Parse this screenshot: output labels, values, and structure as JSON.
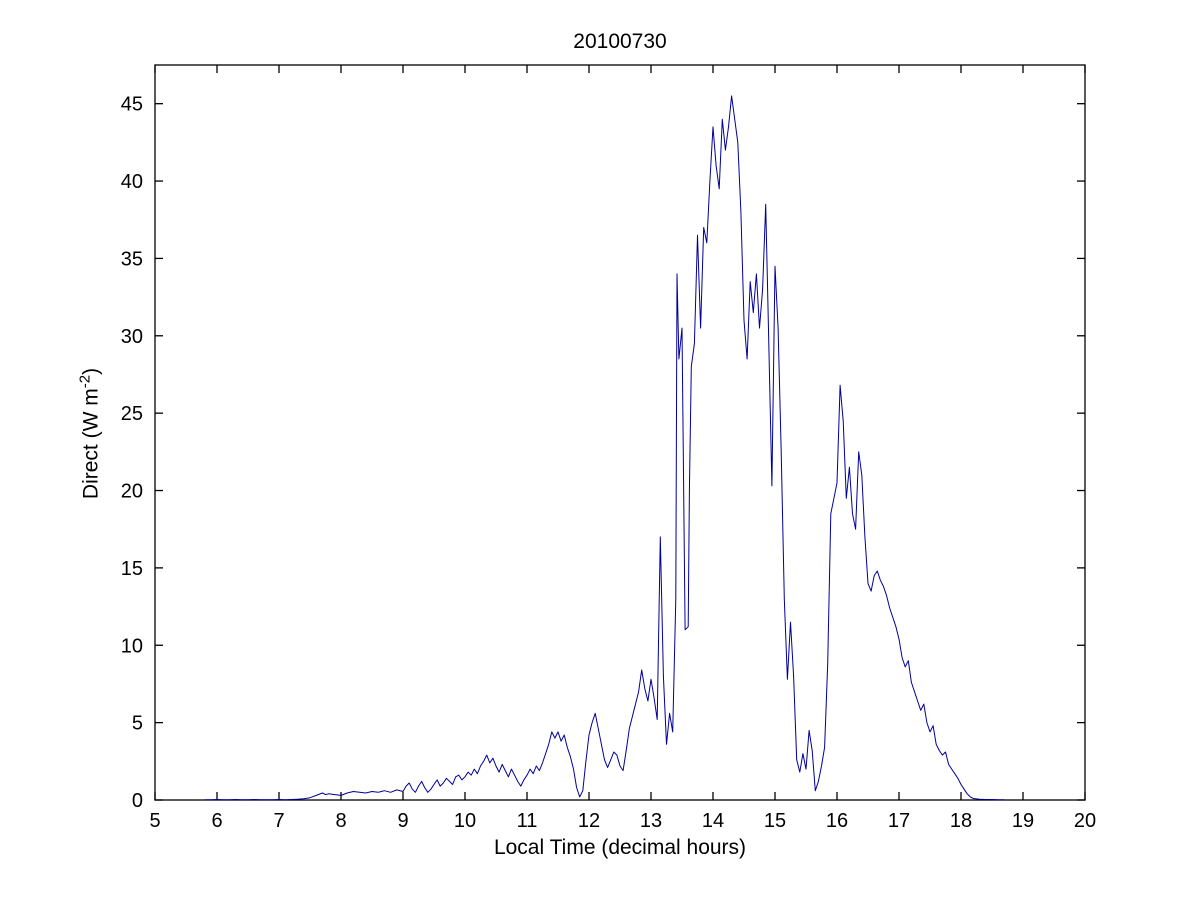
{
  "page": {
    "background": "#ffffff"
  },
  "chart_data": {
    "type": "line",
    "title": "20100730",
    "xlabel": "Local Time (decimal hours)",
    "ylabel_prefix": "Direct (W m",
    "ylabel_sup": "-2",
    "ylabel_suffix": ")",
    "xlim": [
      5,
      20
    ],
    "ylim": [
      0,
      47.5
    ],
    "xticks": [
      5,
      6,
      7,
      8,
      9,
      10,
      11,
      12,
      13,
      14,
      15,
      16,
      17,
      18,
      19,
      20
    ],
    "yticks": [
      0,
      5,
      10,
      15,
      20,
      25,
      30,
      35,
      40,
      45
    ],
    "grid": false,
    "legend_position": "none",
    "line_color": "#000099",
    "frame_color": "#000000",
    "points": [
      [
        5.8,
        0.02
      ],
      [
        5.9,
        0.02
      ],
      [
        6.0,
        0.03
      ],
      [
        6.1,
        0.02
      ],
      [
        6.2,
        0.02
      ],
      [
        6.3,
        0.03
      ],
      [
        6.4,
        0.02
      ],
      [
        6.5,
        0.02
      ],
      [
        6.6,
        0.03
      ],
      [
        6.7,
        0.02
      ],
      [
        6.8,
        0.02
      ],
      [
        6.9,
        0.02
      ],
      [
        7.0,
        0.03
      ],
      [
        7.1,
        0.02
      ],
      [
        7.2,
        0.03
      ],
      [
        7.3,
        0.05
      ],
      [
        7.4,
        0.08
      ],
      [
        7.5,
        0.15
      ],
      [
        7.6,
        0.3
      ],
      [
        7.7,
        0.45
      ],
      [
        7.75,
        0.35
      ],
      [
        7.8,
        0.4
      ],
      [
        7.9,
        0.35
      ],
      [
        8.0,
        0.3
      ],
      [
        8.1,
        0.45
      ],
      [
        8.2,
        0.55
      ],
      [
        8.3,
        0.5
      ],
      [
        8.4,
        0.45
      ],
      [
        8.5,
        0.55
      ],
      [
        8.6,
        0.5
      ],
      [
        8.7,
        0.6
      ],
      [
        8.8,
        0.5
      ],
      [
        8.9,
        0.65
      ],
      [
        9.0,
        0.55
      ],
      [
        9.05,
        0.9
      ],
      [
        9.1,
        1.1
      ],
      [
        9.15,
        0.7
      ],
      [
        9.2,
        0.5
      ],
      [
        9.25,
        0.9
      ],
      [
        9.3,
        1.2
      ],
      [
        9.35,
        0.8
      ],
      [
        9.4,
        0.5
      ],
      [
        9.45,
        0.7
      ],
      [
        9.5,
        1.0
      ],
      [
        9.55,
        1.3
      ],
      [
        9.6,
        0.9
      ],
      [
        9.65,
        1.1
      ],
      [
        9.7,
        1.4
      ],
      [
        9.75,
        1.2
      ],
      [
        9.8,
        1.0
      ],
      [
        9.85,
        1.5
      ],
      [
        9.9,
        1.6
      ],
      [
        9.95,
        1.3
      ],
      [
        10.0,
        1.5
      ],
      [
        10.05,
        1.8
      ],
      [
        10.1,
        1.6
      ],
      [
        10.15,
        2.0
      ],
      [
        10.2,
        1.7
      ],
      [
        10.25,
        2.2
      ],
      [
        10.3,
        2.5
      ],
      [
        10.35,
        2.9
      ],
      [
        10.4,
        2.4
      ],
      [
        10.45,
        2.7
      ],
      [
        10.5,
        2.2
      ],
      [
        10.55,
        1.8
      ],
      [
        10.6,
        2.3
      ],
      [
        10.65,
        1.9
      ],
      [
        10.7,
        1.5
      ],
      [
        10.75,
        2.0
      ],
      [
        10.8,
        1.6
      ],
      [
        10.85,
        1.2
      ],
      [
        10.9,
        0.9
      ],
      [
        10.95,
        1.3
      ],
      [
        11.0,
        1.6
      ],
      [
        11.05,
        2.0
      ],
      [
        11.1,
        1.7
      ],
      [
        11.15,
        2.2
      ],
      [
        11.2,
        1.9
      ],
      [
        11.25,
        2.4
      ],
      [
        11.3,
        3.0
      ],
      [
        11.35,
        3.6
      ],
      [
        11.4,
        4.4
      ],
      [
        11.45,
        4.0
      ],
      [
        11.5,
        4.4
      ],
      [
        11.55,
        3.8
      ],
      [
        11.6,
        4.2
      ],
      [
        11.65,
        3.4
      ],
      [
        11.7,
        2.8
      ],
      [
        11.75,
        2.0
      ],
      [
        11.8,
        0.8
      ],
      [
        11.85,
        0.2
      ],
      [
        11.9,
        0.6
      ],
      [
        11.95,
        2.5
      ],
      [
        12.0,
        4.2
      ],
      [
        12.05,
        5.0
      ],
      [
        12.1,
        5.6
      ],
      [
        12.15,
        4.6
      ],
      [
        12.2,
        3.6
      ],
      [
        12.25,
        2.6
      ],
      [
        12.3,
        2.1
      ],
      [
        12.35,
        2.6
      ],
      [
        12.4,
        3.1
      ],
      [
        12.45,
        2.9
      ],
      [
        12.5,
        2.2
      ],
      [
        12.55,
        1.9
      ],
      [
        12.6,
        3.2
      ],
      [
        12.65,
        4.6
      ],
      [
        12.7,
        5.4
      ],
      [
        12.75,
        6.2
      ],
      [
        12.8,
        7.0
      ],
      [
        12.85,
        8.4
      ],
      [
        12.9,
        7.2
      ],
      [
        12.95,
        6.4
      ],
      [
        13.0,
        7.8
      ],
      [
        13.05,
        6.6
      ],
      [
        13.1,
        5.2
      ],
      [
        13.15,
        17.0
      ],
      [
        13.2,
        8.0
      ],
      [
        13.25,
        3.6
      ],
      [
        13.3,
        5.6
      ],
      [
        13.35,
        4.4
      ],
      [
        13.4,
        13.0
      ],
      [
        13.42,
        34.0
      ],
      [
        13.45,
        28.5
      ],
      [
        13.5,
        30.5
      ],
      [
        13.55,
        11.0
      ],
      [
        13.6,
        11.2
      ],
      [
        13.62,
        20.0
      ],
      [
        13.65,
        28.0
      ],
      [
        13.7,
        29.5
      ],
      [
        13.75,
        36.5
      ],
      [
        13.8,
        30.5
      ],
      [
        13.85,
        37.0
      ],
      [
        13.9,
        36.0
      ],
      [
        13.95,
        40.0
      ],
      [
        14.0,
        43.5
      ],
      [
        14.05,
        41.0
      ],
      [
        14.1,
        39.5
      ],
      [
        14.15,
        44.0
      ],
      [
        14.2,
        42.0
      ],
      [
        14.25,
        43.5
      ],
      [
        14.3,
        45.5
      ],
      [
        14.35,
        44.0
      ],
      [
        14.4,
        42.5
      ],
      [
        14.45,
        38.0
      ],
      [
        14.5,
        31.0
      ],
      [
        14.55,
        28.5
      ],
      [
        14.6,
        33.5
      ],
      [
        14.65,
        31.5
      ],
      [
        14.7,
        34.0
      ],
      [
        14.75,
        30.5
      ],
      [
        14.8,
        33.0
      ],
      [
        14.85,
        38.5
      ],
      [
        14.9,
        29.5
      ],
      [
        14.95,
        20.3
      ],
      [
        15.0,
        34.5
      ],
      [
        15.05,
        30.5
      ],
      [
        15.1,
        22.5
      ],
      [
        15.15,
        13.0
      ],
      [
        15.2,
        7.8
      ],
      [
        15.25,
        11.5
      ],
      [
        15.3,
        8.0
      ],
      [
        15.35,
        2.6
      ],
      [
        15.4,
        1.8
      ],
      [
        15.45,
        3.0
      ],
      [
        15.5,
        2.0
      ],
      [
        15.55,
        4.5
      ],
      [
        15.6,
        3.2
      ],
      [
        15.65,
        0.6
      ],
      [
        15.7,
        1.2
      ],
      [
        15.75,
        2.2
      ],
      [
        15.8,
        3.4
      ],
      [
        15.85,
        8.8
      ],
      [
        15.9,
        18.5
      ],
      [
        15.95,
        19.5
      ],
      [
        16.0,
        20.5
      ],
      [
        16.05,
        26.8
      ],
      [
        16.1,
        24.5
      ],
      [
        16.15,
        19.5
      ],
      [
        16.2,
        21.5
      ],
      [
        16.25,
        18.5
      ],
      [
        16.3,
        17.5
      ],
      [
        16.35,
        22.5
      ],
      [
        16.4,
        21.0
      ],
      [
        16.45,
        17.0
      ],
      [
        16.5,
        14.0
      ],
      [
        16.55,
        13.5
      ],
      [
        16.6,
        14.5
      ],
      [
        16.65,
        14.8
      ],
      [
        16.7,
        14.2
      ],
      [
        16.75,
        13.8
      ],
      [
        16.8,
        13.2
      ],
      [
        16.85,
        12.4
      ],
      [
        16.9,
        11.8
      ],
      [
        16.95,
        11.2
      ],
      [
        17.0,
        10.4
      ],
      [
        17.05,
        9.2
      ],
      [
        17.1,
        8.6
      ],
      [
        17.15,
        9.0
      ],
      [
        17.2,
        7.6
      ],
      [
        17.25,
        7.0
      ],
      [
        17.3,
        6.4
      ],
      [
        17.35,
        5.8
      ],
      [
        17.4,
        6.2
      ],
      [
        17.45,
        5.0
      ],
      [
        17.5,
        4.4
      ],
      [
        17.55,
        4.8
      ],
      [
        17.6,
        3.6
      ],
      [
        17.65,
        3.2
      ],
      [
        17.7,
        2.9
      ],
      [
        17.75,
        3.1
      ],
      [
        17.8,
        2.3
      ],
      [
        17.85,
        2.0
      ],
      [
        17.9,
        1.7
      ],
      [
        17.95,
        1.4
      ],
      [
        18.0,
        1.0
      ],
      [
        18.05,
        0.7
      ],
      [
        18.1,
        0.4
      ],
      [
        18.15,
        0.2
      ],
      [
        18.2,
        0.1
      ],
      [
        18.3,
        0.05
      ],
      [
        18.4,
        0.03
      ],
      [
        18.5,
        0.03
      ],
      [
        18.6,
        0.02
      ],
      [
        18.7,
        0.02
      ]
    ]
  }
}
